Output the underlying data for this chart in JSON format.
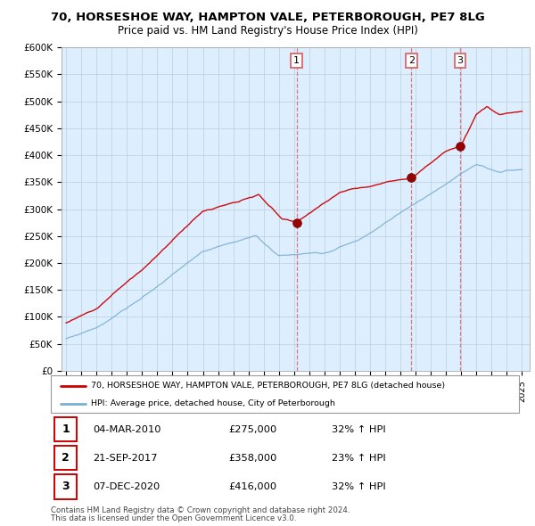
{
  "title": "70, HORSESHOE WAY, HAMPTON VALE, PETERBOROUGH, PE7 8LG",
  "subtitle": "Price paid vs. HM Land Registry's House Price Index (HPI)",
  "ylabel_values": [
    "£0",
    "£50K",
    "£100K",
    "£150K",
    "£200K",
    "£250K",
    "£300K",
    "£350K",
    "£400K",
    "£450K",
    "£500K",
    "£550K",
    "£600K"
  ],
  "ylim": [
    0,
    600000
  ],
  "yticks": [
    0,
    50000,
    100000,
    150000,
    200000,
    250000,
    300000,
    350000,
    400000,
    450000,
    500000,
    550000,
    600000
  ],
  "sale_dates_num": [
    2010.17,
    2017.72,
    2020.92
  ],
  "sale_prices": [
    275000,
    358000,
    416000
  ],
  "sale_labels": [
    "1",
    "2",
    "3"
  ],
  "legend_line1": "70, HORSESHOE WAY, HAMPTON VALE, PETERBOROUGH, PE7 8LG (detached house)",
  "legend_line2": "HPI: Average price, detached house, City of Peterborough",
  "table_data": [
    [
      "1",
      "04-MAR-2010",
      "£275,000",
      "32% ↑ HPI"
    ],
    [
      "2",
      "21-SEP-2017",
      "£358,000",
      "23% ↑ HPI"
    ],
    [
      "3",
      "07-DEC-2020",
      "£416,000",
      "32% ↑ HPI"
    ]
  ],
  "footer1": "Contains HM Land Registry data © Crown copyright and database right 2024.",
  "footer2": "This data is licensed under the Open Government Licence v3.0.",
  "red_color": "#cc0000",
  "blue_color": "#7bafd4",
  "dashed_color": "#dd6666",
  "background_color": "#ffffff",
  "chart_bg": "#ddeeff",
  "grid_color": "#bbccdd"
}
